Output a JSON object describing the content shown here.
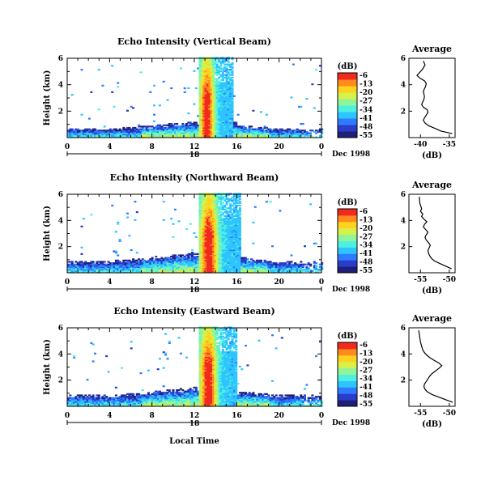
{
  "figure": {
    "date_label": "Dec 1998",
    "xlabel": "Local Time",
    "ylabel": "Height (km)",
    "colorbar_unit": "(dB)",
    "average_title": "Average",
    "average_xlabel": "(dB)",
    "day_label": "18"
  },
  "colorbar": {
    "levels": [
      "-6",
      "-13",
      "-20",
      "-27",
      "-34",
      "-41",
      "-48",
      "-55"
    ],
    "colors": [
      "#1f1f7a",
      "#2a3cc8",
      "#2e7bff",
      "#2ec4ff",
      "#4ef0e0",
      "#8ff59a",
      "#d8f04a",
      "#ffd21e",
      "#ff8a1e",
      "#f02a1e"
    ]
  },
  "chart_data": [
    {
      "type": "heatmap",
      "title": "Echo Intensity (Vertical Beam)",
      "xlabel": "",
      "ylabel": "Height (km)",
      "xlim": [
        0,
        24
      ],
      "ylim": [
        0,
        6
      ],
      "xticks": [
        "0",
        "4",
        "8",
        "12",
        "16",
        "20",
        "0"
      ],
      "yticks": [
        "2",
        "4",
        "6"
      ],
      "value_range_db": [
        -55,
        -6
      ],
      "structure": {
        "boundary_layer_top_km": 1.3,
        "strong_echo_hours": [
          12.3,
          15.5
        ],
        "strong_echo_top_km": 6
      }
    },
    {
      "type": "line",
      "title": "Average",
      "xlabel": "(dB)",
      "xlim": [
        -42,
        -34
      ],
      "ylim": [
        0,
        6
      ],
      "xticks": [
        "-40",
        "-35"
      ],
      "yticks": [
        "2",
        "4",
        "6"
      ],
      "x": [
        -34.5,
        -36.5,
        -37.5,
        -38.6,
        -39.2,
        -39.5,
        -39.3,
        -39.0,
        -38.7,
        -38.8,
        -39.5,
        -39.8,
        -39.6,
        -39.4,
        -39.3,
        -39.4,
        -39.5,
        -39.3,
        -39.1,
        -39.0,
        -39.3,
        -40.1,
        -40.6,
        -40.2,
        -39.6,
        -39.2,
        -39.5
      ],
      "y": [
        0.3,
        0.5,
        0.7,
        0.9,
        1.1,
        1.3,
        1.5,
        1.7,
        1.9,
        2.1,
        2.3,
        2.5,
        2.7,
        2.9,
        3.1,
        3.3,
        3.5,
        3.7,
        3.9,
        4.1,
        4.3,
        4.5,
        4.7,
        4.9,
        5.2,
        5.5,
        5.8
      ]
    },
    {
      "type": "heatmap",
      "title": "Echo Intensity (Northward Beam)",
      "xlabel": "",
      "ylabel": "Height (km)",
      "xlim": [
        0,
        24
      ],
      "ylim": [
        0,
        6
      ],
      "xticks": [
        "0",
        "4",
        "8",
        "12",
        "16",
        "20",
        "0"
      ],
      "yticks": [
        "2",
        "4",
        "6"
      ],
      "value_range_db": [
        -55,
        -6
      ],
      "structure": {
        "boundary_layer_top_km": 1.7,
        "strong_echo_hours": [
          12.3,
          16.2
        ],
        "strong_echo_top_km": 6
      }
    },
    {
      "type": "line",
      "title": "Average",
      "xlabel": "(dB)",
      "xlim": [
        -57,
        -49
      ],
      "ylim": [
        0,
        6
      ],
      "xticks": [
        "-55",
        "-50"
      ],
      "yticks": [
        "2",
        "4",
        "6"
      ],
      "x": [
        -49.6,
        -50.6,
        -51.6,
        -52.6,
        -53.1,
        -53.4,
        -53.6,
        -53.7,
        -53.5,
        -53.3,
        -53.6,
        -54.0,
        -54.2,
        -54.0,
        -53.7,
        -54.1,
        -54.5,
        -54.3,
        -53.9,
        -54.4,
        -54.8,
        -54.6,
        -55.0,
        -54.8,
        -55.1,
        -55.2
      ],
      "y": [
        0.3,
        0.5,
        0.7,
        0.9,
        1.1,
        1.3,
        1.5,
        1.7,
        1.9,
        2.1,
        2.3,
        2.5,
        2.7,
        2.9,
        3.1,
        3.3,
        3.5,
        3.7,
        3.9,
        4.1,
        4.3,
        4.5,
        4.7,
        4.9,
        5.3,
        5.8
      ]
    },
    {
      "type": "heatmap",
      "title": "Echo Intensity (Eastward Beam)",
      "xlabel": "Local Time",
      "ylabel": "Height (km)",
      "xlim": [
        0,
        24
      ],
      "ylim": [
        0,
        6
      ],
      "xticks": [
        "0",
        "4",
        "8",
        "12",
        "16",
        "20",
        "0"
      ],
      "yticks": [
        "2",
        "4",
        "6"
      ],
      "value_range_db": [
        -55,
        -6
      ],
      "structure": {
        "boundary_layer_top_km": 1.6,
        "strong_echo_hours": [
          12.3,
          16.0
        ],
        "strong_echo_top_km": 6
      }
    },
    {
      "type": "line",
      "title": "Average",
      "xlabel": "(dB)",
      "xlim": [
        -57,
        -49
      ],
      "ylim": [
        0,
        6
      ],
      "xticks": [
        "-55",
        "-50"
      ],
      "yticks": [
        "2",
        "4",
        "6"
      ],
      "x": [
        -49.4,
        -50.6,
        -51.8,
        -53.0,
        -53.8,
        -54.2,
        -54.4,
        -54.3,
        -54.0,
        -53.7,
        -53.4,
        -53.0,
        -52.4,
        -51.8,
        -51.3,
        -51.8,
        -52.6,
        -53.3,
        -53.9,
        -54.3,
        -54.6,
        -54.8,
        -55.0,
        -55.1,
        -55.2,
        -55.3
      ],
      "y": [
        0.3,
        0.5,
        0.7,
        0.9,
        1.1,
        1.3,
        1.5,
        1.7,
        1.9,
        2.1,
        2.3,
        2.5,
        2.7,
        2.9,
        3.1,
        3.3,
        3.5,
        3.7,
        3.9,
        4.1,
        4.3,
        4.6,
        4.9,
        5.2,
        5.5,
        5.8
      ]
    }
  ]
}
